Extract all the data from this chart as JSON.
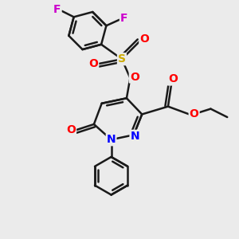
{
  "background_color": "#ebebeb",
  "bond_color": "#1a1a1a",
  "N_color": "#0000ff",
  "O_color": "#ff0000",
  "S_color": "#ccaa00",
  "F_color": "#cc00cc",
  "lw": 1.8,
  "figsize": [
    3.0,
    3.0
  ],
  "dpi": 100,
  "xlim": [
    0,
    10
  ],
  "ylim": [
    0,
    10
  ]
}
